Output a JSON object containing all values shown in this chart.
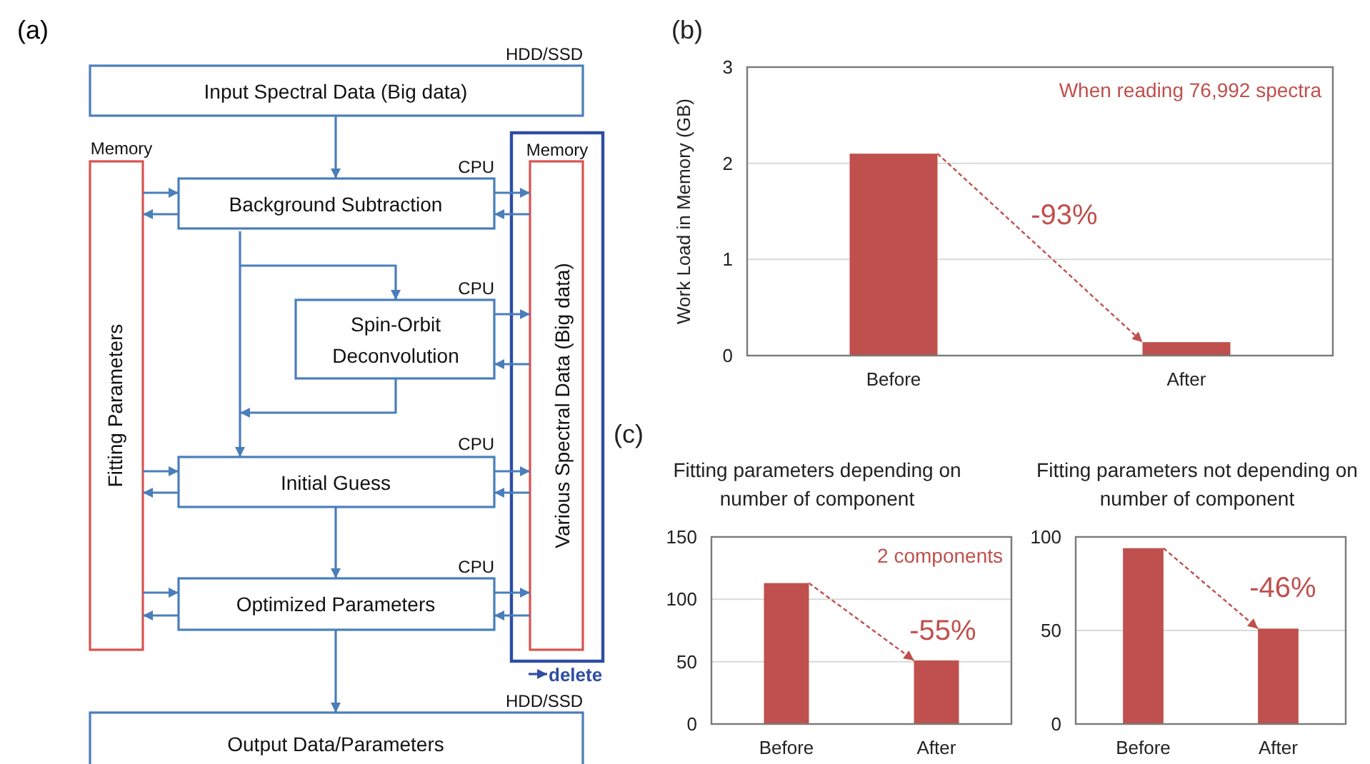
{
  "chart_data": [
    {
      "type": "other",
      "title": "(a)",
      "annotations": [
        "HDD/SSD",
        "Input Spectral Data (Big data)",
        "Memory",
        "Fitting Parameters",
        "CPU",
        "Background Subtraction",
        "Memory",
        "Various Spectral Data (Big data)",
        "CPU",
        "Spin-Orbit Deconvolution",
        "CPU",
        "Initial Guess",
        "CPU",
        "Optimized Parameters",
        "delete",
        "HDD/SSD",
        "Output Data/Parameters"
      ]
    },
    {
      "type": "bar",
      "title": "(b)",
      "annotations": [
        "When reading 76,992 spectra",
        "-93%"
      ],
      "ylabel": "Work Load in Memory (GB)",
      "categories": [
        "Before",
        "After"
      ],
      "values": [
        2.1,
        0.14
      ],
      "color": "#bf504d",
      "ylim": [
        0,
        3
      ],
      "yticks": [
        0,
        1,
        2,
        3
      ],
      "grid": "y"
    },
    {
      "type": "bar",
      "title": "Fitting parameters depending on number of component",
      "annotations": [
        "(c)",
        "2 components",
        "-55%"
      ],
      "categories": [
        "Before",
        "After"
      ],
      "values": [
        113,
        51
      ],
      "color": "#bf504d",
      "ylim": [
        0,
        150
      ],
      "yticks": [
        0,
        50,
        100,
        150
      ],
      "grid": "y"
    },
    {
      "type": "bar",
      "title": "Fitting parameters not depending on number of component",
      "annotations": [
        "-46%"
      ],
      "categories": [
        "Before",
        "After"
      ],
      "values": [
        94,
        51
      ],
      "color": "#bf504d",
      "ylim": [
        0,
        100
      ],
      "yticks": [
        0,
        50,
        100
      ],
      "grid": "y"
    }
  ]
}
